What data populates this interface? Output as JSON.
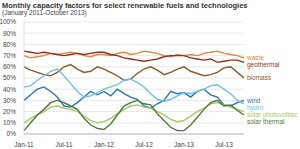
{
  "chart_data": {
    "type": "line",
    "title": "Monthly capacity factors for select renewable fuels and technologies",
    "subtitle": "(January 2011-October 2013)",
    "categories": [
      "Jan-11",
      null,
      null,
      null,
      null,
      null,
      "Jul-11",
      null,
      null,
      null,
      null,
      null,
      "Jan-12",
      null,
      null,
      null,
      null,
      null,
      "Jul-12",
      null,
      null,
      null,
      null,
      null,
      "Jan-13",
      null,
      null,
      null,
      null,
      null,
      "Jul-13",
      null,
      null,
      null
    ],
    "ylim": [
      0,
      100
    ],
    "yticks": [
      {
        "value": 0,
        "label": "0%"
      },
      {
        "value": 10,
        "label": "10%"
      },
      {
        "value": 20,
        "label": "20%"
      },
      {
        "value": 30,
        "label": "30%"
      },
      {
        "value": 40,
        "label": "40%"
      },
      {
        "value": 50,
        "label": "50%"
      },
      {
        "value": 60,
        "label": "60%"
      },
      {
        "value": 70,
        "label": "70%"
      },
      {
        "value": 80,
        "label": "80%"
      },
      {
        "value": 90,
        "label": "90%"
      },
      {
        "value": 100,
        "label": "100%"
      }
    ],
    "grid": true,
    "series": [
      {
        "name": "waste",
        "color": "#e08a3c",
        "values": [
          70,
          68,
          69,
          70,
          72,
          71,
          72,
          73,
          72,
          70,
          69,
          71,
          71,
          70,
          72,
          73,
          71,
          72,
          74,
          73,
          72,
          70,
          69,
          71,
          70,
          71,
          70,
          72,
          73,
          74,
          72,
          71,
          70,
          68
        ]
      },
      {
        "name": "geothermal",
        "color": "#9b2c1e",
        "values": [
          74,
          73,
          72,
          73,
          72,
          71,
          70,
          71,
          72,
          71,
          72,
          73,
          73,
          71,
          70,
          68,
          67,
          66,
          65,
          66,
          67,
          69,
          70,
          70,
          70,
          68,
          67,
          66,
          67,
          64,
          65,
          66,
          66,
          64
        ]
      },
      {
        "name": "biomass",
        "color": "#8b5a2b",
        "values": [
          60,
          57,
          55,
          53,
          52,
          55,
          60,
          62,
          58,
          55,
          56,
          60,
          58,
          55,
          52,
          48,
          49,
          54,
          58,
          60,
          57,
          53,
          55,
          58,
          60,
          56,
          54,
          52,
          53,
          55,
          59,
          60,
          55,
          50
        ]
      },
      {
        "name": "wind",
        "color": "#2e75b6",
        "values": [
          30,
          35,
          40,
          42,
          38,
          33,
          25,
          24,
          28,
          33,
          38,
          35,
          38,
          34,
          40,
          36,
          33,
          31,
          25,
          23,
          27,
          30,
          38,
          36,
          37,
          33,
          38,
          40,
          35,
          33,
          26,
          25,
          28,
          30
        ]
      },
      {
        "name": "hydro",
        "color": "#6ec1e4",
        "values": [
          42,
          43,
          48,
          52,
          56,
          58,
          52,
          45,
          38,
          33,
          34,
          37,
          40,
          42,
          44,
          48,
          49,
          46,
          42,
          36,
          31,
          29,
          31,
          34,
          37,
          36,
          38,
          40,
          43,
          44,
          40,
          36,
          30,
          27
        ]
      },
      {
        "name": "solar photovoltaic",
        "color": "#a6c96a",
        "values": [
          10,
          14,
          17,
          20,
          24,
          25,
          23,
          22,
          20,
          16,
          12,
          10,
          11,
          14,
          18,
          22,
          25,
          26,
          24,
          23,
          20,
          17,
          13,
          11,
          12,
          16,
          20,
          23,
          27,
          28,
          26,
          24,
          22,
          20
        ]
      },
      {
        "name": "solar thermal",
        "color": "#4d7c3a",
        "values": [
          3,
          10,
          17,
          22,
          28,
          30,
          28,
          25,
          22,
          14,
          8,
          5,
          4,
          9,
          17,
          25,
          28,
          30,
          27,
          26,
          18,
          12,
          6,
          3,
          3,
          8,
          15,
          22,
          28,
          30,
          25,
          26,
          21,
          17
        ]
      }
    ]
  }
}
